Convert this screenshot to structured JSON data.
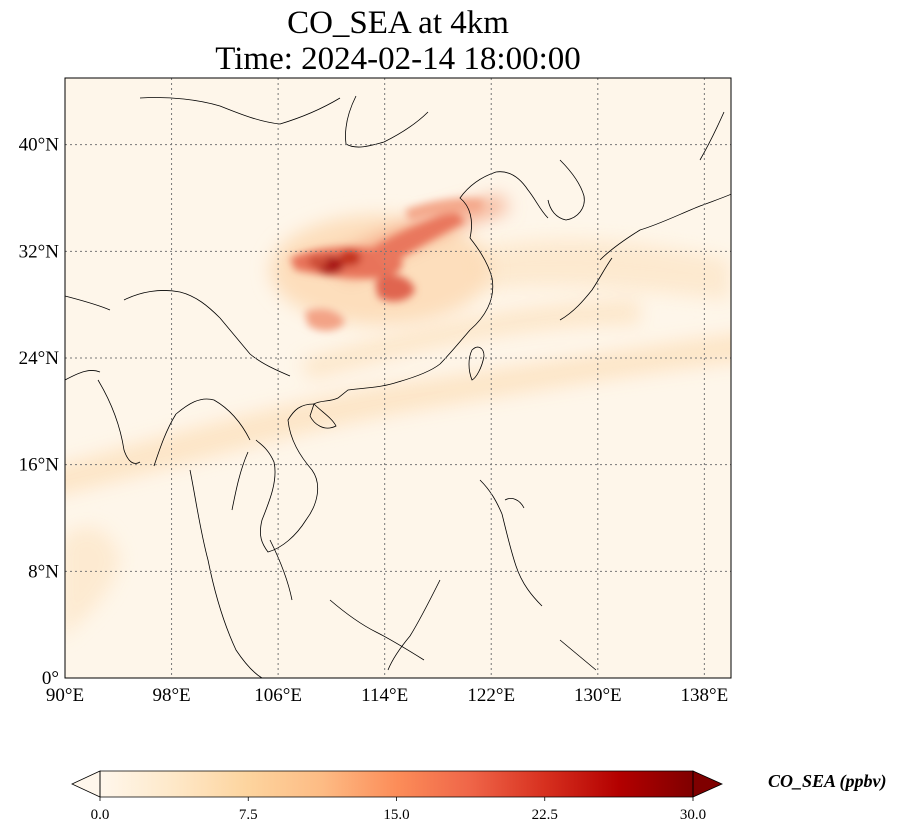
{
  "title_line1": "CO_SEA at 4km",
  "title_line2": "Time: 2024-02-14 18:00:00",
  "map": {
    "lon_range": [
      90,
      140
    ],
    "lat_range": [
      0,
      45
    ],
    "lon_ticks": [
      {
        "value": 90,
        "label": "90°E"
      },
      {
        "value": 98,
        "label": "98°E"
      },
      {
        "value": 106,
        "label": "106°E"
      },
      {
        "value": 114,
        "label": "114°E"
      },
      {
        "value": 122,
        "label": "122°E"
      },
      {
        "value": 130,
        "label": "130°E"
      },
      {
        "value": 138,
        "label": "138°E"
      }
    ],
    "lat_ticks": [
      {
        "value": 0,
        "label": "0°"
      },
      {
        "value": 8,
        "label": "8°N"
      },
      {
        "value": 16,
        "label": "16°N"
      },
      {
        "value": 24,
        "label": "24°N"
      },
      {
        "value": 32,
        "label": "32°N"
      },
      {
        "value": 40,
        "label": "40°N"
      }
    ],
    "gridlines": true,
    "colormap": "OrRd"
  },
  "colorbar": {
    "label": "CO_SEA (ppbv)",
    "min": 0.0,
    "max": 30.0,
    "ticks": [
      {
        "value": 0,
        "label": "0.0"
      },
      {
        "value": 7.5,
        "label": "7.5"
      },
      {
        "value": 15,
        "label": "15.0"
      },
      {
        "value": 22.5,
        "label": "22.5"
      },
      {
        "value": 30,
        "label": "30.0"
      }
    ],
    "extend": "both",
    "colors": [
      "#fff7ec",
      "#fee8c8",
      "#fdd49e",
      "#fdbb84",
      "#fc8d59",
      "#ef6548",
      "#d7301f",
      "#b30000",
      "#7f0000"
    ]
  }
}
